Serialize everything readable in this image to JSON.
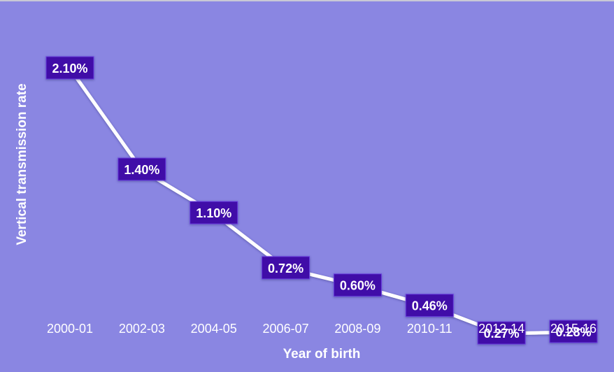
{
  "chart_data": {
    "type": "line",
    "categories": [
      "2000-01",
      "2002-03",
      "2004-05",
      "2006-07",
      "2008-09",
      "2010-11",
      "2012-14",
      "2015-16"
    ],
    "values": [
      2.1,
      1.4,
      1.1,
      0.72,
      0.6,
      0.46,
      0.27,
      0.28
    ],
    "data_labels": [
      "2.10%",
      "1.40%",
      "1.10%",
      "0.72%",
      "0.60%",
      "0.46%",
      "0.27%",
      "0.28%"
    ],
    "title": "",
    "xlabel": "Year of birth",
    "ylabel": "Vertical transmission rate",
    "ylim": [
      0,
      2.2
    ],
    "grid": false,
    "legend": "none"
  },
  "colors": {
    "background": "#8a86e2",
    "line": "#ffffff",
    "label_fill": "#3f0aa8",
    "label_text": "#ffffff",
    "axis_text": "#ffffff",
    "drop_line": "#ffffff"
  }
}
